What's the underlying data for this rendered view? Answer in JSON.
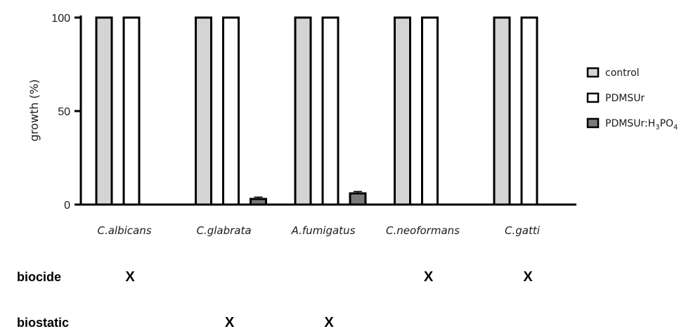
{
  "chart_data": {
    "type": "bar",
    "title": "",
    "xlabel": "",
    "ylabel": "growth (%)",
    "ylim": [
      0,
      100
    ],
    "yticks": [
      "0",
      "50",
      "100"
    ],
    "grid": false,
    "legend_position": "right",
    "categories": [
      "C.albicans",
      "C.glabrata",
      "A.fumigatus",
      "C.neoformans",
      "C.gatti"
    ],
    "series": [
      {
        "name": "control",
        "color": "#d4d4d4",
        "values": [
          100,
          100,
          100,
          100,
          100
        ]
      },
      {
        "name": "PDMSUr",
        "color": "#ffffff",
        "values": [
          100,
          100,
          100,
          100,
          100
        ]
      },
      {
        "name": "PDMSUr:H3PO4",
        "color": "#7a7a7a",
        "values": [
          0,
          3,
          6,
          0,
          0
        ],
        "errors": [
          0,
          1,
          1,
          0,
          0
        ]
      }
    ],
    "legend": {
      "control": "control",
      "pdmsur": "PDMSUr",
      "phos_prefix": "PDMSUr:H",
      "phos_sub1": "3",
      "phos_mid": "PO",
      "phos_sub2": "4"
    },
    "rows": [
      {
        "label": "biocide",
        "marks": [
          "X",
          "",
          "",
          "X",
          "X"
        ]
      },
      {
        "label": "biostatic",
        "marks": [
          "",
          "X",
          "X",
          "",
          ""
        ]
      }
    ]
  }
}
